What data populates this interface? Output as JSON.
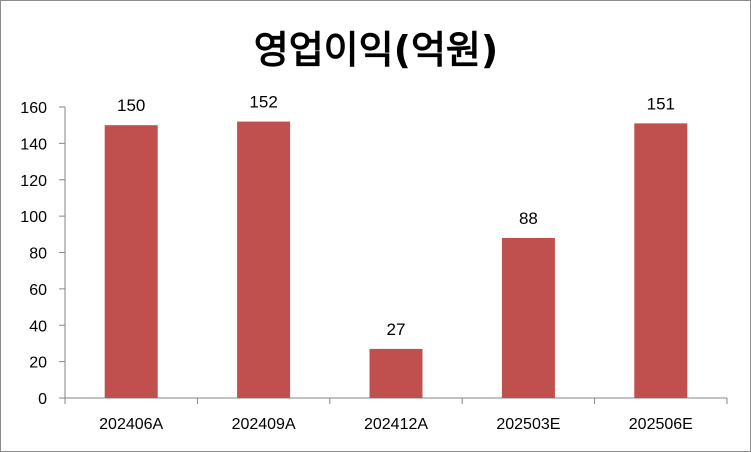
{
  "chart_data": {
    "type": "bar",
    "title": "영업이익(억원)",
    "categories": [
      "202406A",
      "202409A",
      "202412A",
      "202503E",
      "202506E"
    ],
    "values": [
      150,
      152,
      27,
      88,
      151
    ],
    "data_labels": [
      "150",
      "152",
      "27",
      "88",
      "151"
    ],
    "ylim": [
      0,
      160
    ],
    "yticks": [
      0,
      20,
      40,
      60,
      80,
      100,
      120,
      140,
      160
    ],
    "xlabel": "",
    "ylabel": "",
    "grid": false,
    "legend": "none",
    "bar_color": "#c0504d"
  }
}
